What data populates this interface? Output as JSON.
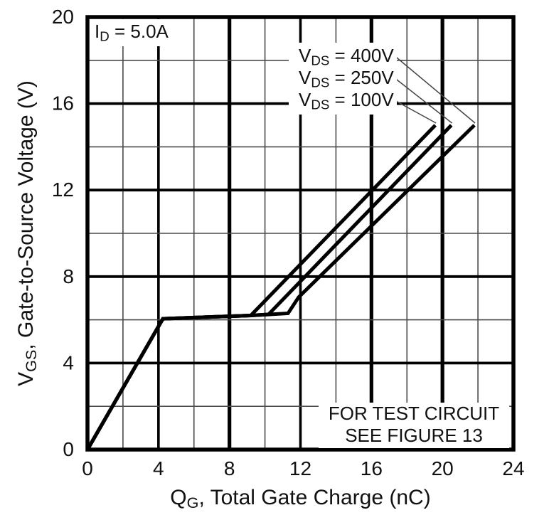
{
  "figure": {
    "background": "#ffffff",
    "ink_color": "#111111",
    "curve_color": "#000000",
    "leader_color": "#444444"
  },
  "chart_data": {
    "type": "line",
    "title": "",
    "xlabel": {
      "sym": "Q",
      "sub": "G",
      "rest": ", Total Gate Charge (nC)"
    },
    "ylabel": {
      "sym": "V",
      "sub": "GS",
      "rest": ", Gate-to-Source Voltage (V)"
    },
    "annotation": {
      "sym": "I",
      "sub": "D",
      "rest": " = 5.0A"
    },
    "note1": "FOR TEST CIRCUIT",
    "note2": "SEE FIGURE 13",
    "xlim": [
      0,
      24
    ],
    "ylim": [
      0,
      20
    ],
    "x_ticks": [
      0,
      4,
      8,
      12,
      16,
      20,
      24
    ],
    "y_ticks": [
      0,
      4,
      8,
      12,
      16,
      20
    ],
    "grid_on": true,
    "grid": {
      "step_x": 2,
      "step_y": 2,
      "major_x": [
        4,
        12
      ],
      "heavy_x": [
        8,
        16,
        20
      ],
      "major_y": [
        4,
        8,
        12,
        16
      ]
    },
    "legend_position": "inside-upper-right with leader lines to curve tips",
    "series": [
      {
        "name": "VDS = 400V",
        "points": [
          [
            0,
            0
          ],
          [
            4.25,
            6.05
          ],
          [
            9.2,
            6.2
          ],
          [
            11.3,
            6.3
          ],
          [
            11.9,
            7.05
          ],
          [
            21.8,
            15
          ]
        ]
      },
      {
        "name": "VDS = 250V",
        "points": [
          [
            0,
            0
          ],
          [
            4.25,
            6.05
          ],
          [
            9.2,
            6.2
          ],
          [
            10.2,
            6.25
          ],
          [
            20.5,
            15
          ]
        ]
      },
      {
        "name": "VDS = 100V",
        "points": [
          [
            0,
            0
          ],
          [
            4.25,
            6.05
          ],
          [
            9.2,
            6.2
          ],
          [
            19.6,
            15
          ]
        ]
      }
    ],
    "legend": [
      {
        "sym": "V",
        "sub": "DS",
        "rest": " = 400V",
        "series": "VDS = 400V"
      },
      {
        "sym": "V",
        "sub": "DS",
        "rest": " = 250V",
        "series": "VDS = 250V"
      },
      {
        "sym": "V",
        "sub": "DS",
        "rest": " = 100V",
        "series": "VDS = 100V"
      }
    ]
  }
}
